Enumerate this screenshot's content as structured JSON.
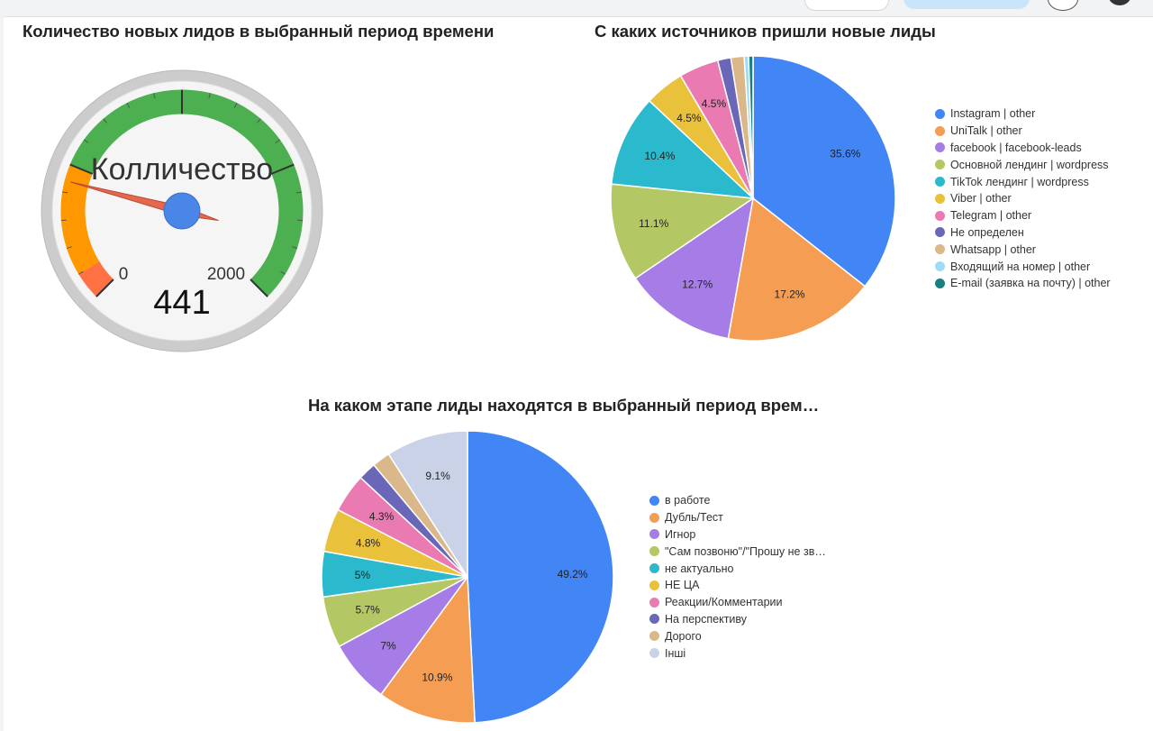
{
  "chart_data": [
    {
      "type": "gauge",
      "title": "Количество новых лидов в выбранный период времени",
      "label": "Колличество",
      "value": 441,
      "value_label": "441",
      "min": 0,
      "max": 2000,
      "min_label": "0",
      "max_label": "2000",
      "bands": [
        {
          "from": 0,
          "to": 100,
          "color": "#ff7043"
        },
        {
          "from": 100,
          "to": 500,
          "color": "#ff9800"
        },
        {
          "from": 500,
          "to": 2000,
          "color": "#4caf50"
        }
      ]
    },
    {
      "type": "pie",
      "title": "С каких источников пришли новые лиды",
      "legend_position": "right",
      "slices": [
        {
          "label": "Instagram | other",
          "value": 35.6,
          "text": "35.6%",
          "color": "#4285f4"
        },
        {
          "label": "UniTalk | other",
          "value": 17.2,
          "text": "17.2%",
          "color": "#f59d52"
        },
        {
          "label": "facebook | facebook-leads",
          "value": 12.7,
          "text": "12.7%",
          "color": "#a67ce6"
        },
        {
          "label": "Основной лендинг | wordpress",
          "value": 11.1,
          "text": "11.1%",
          "color": "#b4c765"
        },
        {
          "label": "TikTok лендинг | wordpress",
          "value": 10.4,
          "text": "10.4%",
          "color": "#2bbacd"
        },
        {
          "label": "Viber | other",
          "value": 4.5,
          "text": "4.5%",
          "color": "#eac13a"
        },
        {
          "label": "Telegram | other",
          "value": 4.5,
          "text": "4.5%",
          "color": "#e97bb2"
        },
        {
          "label": "Не определен",
          "value": 1.5,
          "text": "",
          "color": "#6a67b8"
        },
        {
          "label": "Whatsapp | other",
          "value": 1.5,
          "text": "",
          "color": "#dab88a"
        },
        {
          "label": "Входящий на номер | other",
          "value": 0.5,
          "text": "",
          "color": "#9fdcf4"
        },
        {
          "label": "E-mail (заявка на почту) | other",
          "value": 0.5,
          "text": "",
          "color": "#1a7f80"
        }
      ]
    },
    {
      "type": "pie",
      "title": "На каком этапе лиды находятся в выбранный период врем…",
      "legend_position": "right",
      "slices": [
        {
          "label": "в работе",
          "value": 49.2,
          "text": "49.2%",
          "color": "#4285f4"
        },
        {
          "label": "Дубль/Тест",
          "value": 10.9,
          "text": "10.9%",
          "color": "#f59d52"
        },
        {
          "label": "Игнор",
          "value": 7.0,
          "text": "7%",
          "color": "#a67ce6"
        },
        {
          "label": "\"Сам позвоню\"/\"Прошу не зв…",
          "value": 5.7,
          "text": "5.7%",
          "color": "#b4c765"
        },
        {
          "label": "не актуально",
          "value": 5.0,
          "text": "5%",
          "color": "#2bbacd"
        },
        {
          "label": "НЕ ЦА",
          "value": 4.8,
          "text": "4.8%",
          "color": "#eac13a"
        },
        {
          "label": "Реакции/Комментарии",
          "value": 4.3,
          "text": "4.3%",
          "color": "#e97bb2"
        },
        {
          "label": "На перспективу",
          "value": 2.0,
          "text": "",
          "color": "#6a67b8"
        },
        {
          "label": "Дорого",
          "value": 2.0,
          "text": "",
          "color": "#dab88a"
        },
        {
          "label": "Інші",
          "value": 9.1,
          "text": "9.1%",
          "color": "#c9d2e6"
        }
      ]
    }
  ]
}
